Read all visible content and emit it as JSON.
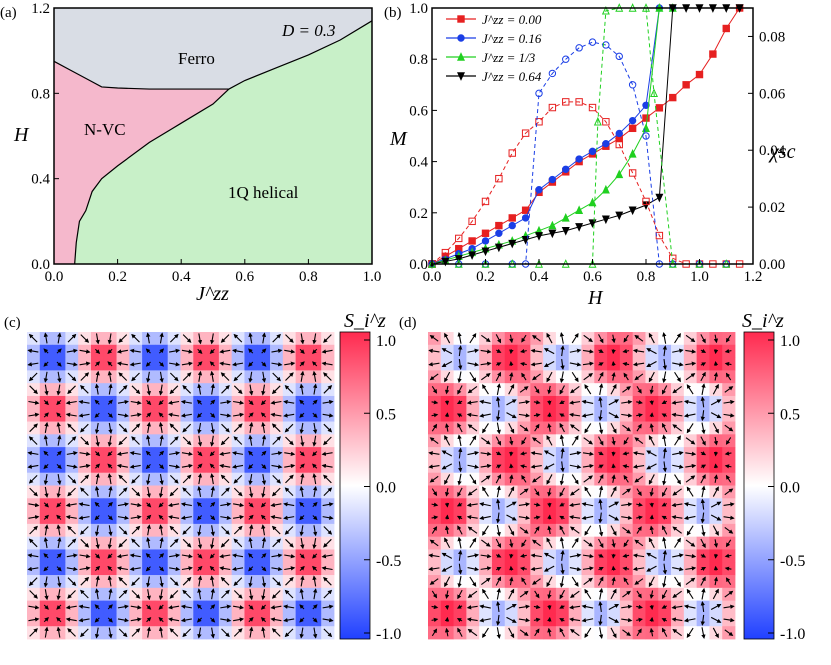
{
  "figure": {
    "panel_labels": [
      "(a)",
      "(b)",
      "(c)",
      "(d)"
    ]
  },
  "panel_a": {
    "annotation": "D = 0.3",
    "xlabel": "J^zz",
    "ylabel": "H",
    "xticks": [
      "0.0",
      "0.2",
      "0.4",
      "0.6",
      "0.8",
      "1.0"
    ],
    "yticks": [
      "0.0",
      "0.4",
      "0.8",
      "1.2"
    ],
    "regions": [
      {
        "name": "Ferro",
        "color": "#d9dde5"
      },
      {
        "name": "N-VC",
        "color": "#f5b8cc"
      },
      {
        "name": "1Q helical",
        "color": "#c8f0c8"
      }
    ]
  },
  "panel_b": {
    "xlabel": "H",
    "ylabel_left": "M",
    "ylabel_right": "χsc",
    "xticks": [
      "0.0",
      "0.2",
      "0.4",
      "0.6",
      "0.8",
      "1.0",
      "1.2"
    ],
    "yticks_left": [
      "0.0",
      "0.2",
      "0.4",
      "0.6",
      "0.8",
      "1.0"
    ],
    "yticks_right": [
      "0.00",
      "0.02",
      "0.04",
      "0.06",
      "0.08"
    ]
  },
  "colorbar": {
    "label": "S_i^z",
    "ticks": [
      "1.0",
      "0.5",
      "0.0",
      "-0.5",
      "-1.0"
    ]
  },
  "chart_data": [
    {
      "type": "phase-diagram",
      "panel": "(a)",
      "xlabel": "J^zz",
      "ylabel": "H",
      "xlim": [
        0,
        1
      ],
      "ylim": [
        0,
        1.2
      ],
      "boundaries": {
        "nvc_ferro": [
          [
            0.0,
            0.95
          ],
          [
            0.05,
            0.91
          ],
          [
            0.1,
            0.87
          ],
          [
            0.15,
            0.83
          ],
          [
            0.2,
            0.825
          ],
          [
            0.3,
            0.82
          ],
          [
            0.45,
            0.82
          ],
          [
            0.55,
            0.82
          ]
        ],
        "nvc_helical": [
          [
            0.065,
            0.0
          ],
          [
            0.07,
            0.1
          ],
          [
            0.08,
            0.2
          ],
          [
            0.1,
            0.25
          ],
          [
            0.12,
            0.34
          ],
          [
            0.15,
            0.4
          ],
          [
            0.2,
            0.46
          ],
          [
            0.3,
            0.57
          ],
          [
            0.4,
            0.66
          ],
          [
            0.5,
            0.75
          ],
          [
            0.55,
            0.82
          ]
        ],
        "ferro_helical": [
          [
            0.55,
            0.82
          ],
          [
            0.6,
            0.86
          ],
          [
            0.7,
            0.92
          ],
          [
            0.8,
            0.98
          ],
          [
            0.9,
            1.05
          ],
          [
            1.0,
            1.14
          ]
        ],
        "outer_left_top": [
          [
            0.0,
            1.2
          ],
          [
            0.0,
            0.95
          ]
        ]
      }
    },
    {
      "type": "line",
      "panel": "(b)",
      "xlabel": "H",
      "ylabel": "M",
      "y2label": "χsc",
      "xlim": [
        0,
        1.2
      ],
      "ylim": [
        0,
        1.0
      ],
      "y2lim": [
        0,
        0.09
      ],
      "series": [
        {
          "name": "J^zz = 0.00",
          "color": "#e62020",
          "marker": "square",
          "axis": "M",
          "x": [
            0.0,
            0.05,
            0.1,
            0.15,
            0.2,
            0.25,
            0.3,
            0.35,
            0.4,
            0.45,
            0.5,
            0.55,
            0.6,
            0.65,
            0.7,
            0.75,
            0.8,
            0.85,
            0.9,
            0.95,
            1.0,
            1.05,
            1.1,
            1.15
          ],
          "y": [
            0.0,
            0.03,
            0.06,
            0.09,
            0.12,
            0.15,
            0.18,
            0.21,
            0.28,
            0.32,
            0.36,
            0.4,
            0.43,
            0.46,
            0.49,
            0.53,
            0.57,
            0.61,
            0.65,
            0.7,
            0.74,
            0.82,
            0.92,
            1.0
          ]
        },
        {
          "name": "J^zz = 0.16",
          "color": "#1a3ee6",
          "marker": "circle",
          "axis": "M",
          "x": [
            0.0,
            0.05,
            0.1,
            0.15,
            0.2,
            0.25,
            0.3,
            0.35,
            0.4,
            0.45,
            0.5,
            0.55,
            0.6,
            0.65,
            0.7,
            0.75,
            0.8,
            0.85,
            0.9
          ],
          "y": [
            0.0,
            0.02,
            0.04,
            0.06,
            0.09,
            0.12,
            0.15,
            0.18,
            0.29,
            0.33,
            0.37,
            0.41,
            0.44,
            0.47,
            0.51,
            0.56,
            0.62,
            1.0,
            1.0
          ]
        },
        {
          "name": "J^zz = 1/3",
          "color": "#20d020",
          "marker": "triangle-up",
          "axis": "M",
          "x": [
            0.0,
            0.05,
            0.1,
            0.15,
            0.2,
            0.25,
            0.3,
            0.35,
            0.4,
            0.45,
            0.5,
            0.55,
            0.6,
            0.65,
            0.7,
            0.75,
            0.8,
            0.85,
            0.9
          ],
          "y": [
            0.0,
            0.015,
            0.03,
            0.045,
            0.06,
            0.075,
            0.09,
            0.11,
            0.13,
            0.15,
            0.18,
            0.21,
            0.24,
            0.29,
            0.35,
            0.43,
            0.53,
            1.0,
            1.0
          ]
        },
        {
          "name": "J^zz = 0.64",
          "color": "#000000",
          "marker": "triangle-down",
          "axis": "M",
          "x": [
            0.0,
            0.05,
            0.1,
            0.15,
            0.2,
            0.25,
            0.3,
            0.35,
            0.4,
            0.45,
            0.5,
            0.55,
            0.6,
            0.65,
            0.7,
            0.75,
            0.8,
            0.85,
            0.9,
            0.95,
            1.0,
            1.05,
            1.1,
            1.15
          ],
          "y": [
            0.0,
            0.01,
            0.02,
            0.035,
            0.05,
            0.065,
            0.08,
            0.095,
            0.11,
            0.12,
            0.13,
            0.145,
            0.16,
            0.175,
            0.19,
            0.21,
            0.23,
            0.26,
            1.0,
            1.0,
            1.0,
            1.0,
            1.0,
            1.0
          ]
        },
        {
          "name": "χsc (J^zz = 0.00)",
          "color": "#e62020",
          "marker": "open-square",
          "axis": "chi",
          "dashed": true,
          "x": [
            0.0,
            0.05,
            0.1,
            0.15,
            0.2,
            0.25,
            0.3,
            0.35,
            0.4,
            0.45,
            0.5,
            0.55,
            0.6,
            0.65,
            0.7,
            0.75,
            0.8,
            0.85,
            0.9,
            0.95,
            1.0,
            1.05,
            1.1,
            1.15
          ],
          "y": [
            0.0,
            0.004,
            0.009,
            0.015,
            0.022,
            0.03,
            0.039,
            0.046,
            0.05,
            0.055,
            0.057,
            0.057,
            0.055,
            0.05,
            0.042,
            0.032,
            0.022,
            0.01,
            0.002,
            0.0,
            0.0,
            0.0,
            0.0,
            0.0
          ]
        },
        {
          "name": "χsc (J^zz = 0.16)",
          "color": "#1a3ee6",
          "marker": "open-circle",
          "axis": "chi",
          "dashed": true,
          "x": [
            0.0,
            0.1,
            0.2,
            0.3,
            0.35,
            0.4,
            0.45,
            0.5,
            0.55,
            0.6,
            0.65,
            0.7,
            0.75,
            0.8,
            0.85,
            0.9,
            1.0,
            1.1
          ],
          "y": [
            0.0,
            0.0,
            0.0,
            0.0,
            0.0,
            0.06,
            0.067,
            0.072,
            0.076,
            0.078,
            0.077,
            0.073,
            0.063,
            0.045,
            0.0,
            0.0,
            0.0,
            0.0
          ]
        },
        {
          "name": "χsc (J^zz = 1/3)",
          "color": "#20d020",
          "marker": "open-triangle-up",
          "axis": "chi",
          "dashed": true,
          "x": [
            0.0,
            0.1,
            0.2,
            0.3,
            0.4,
            0.5,
            0.6,
            0.62,
            0.65,
            0.7,
            0.75,
            0.8,
            0.83,
            0.9,
            1.0,
            1.1
          ],
          "y": [
            0.0,
            0.0,
            0.0,
            0.0,
            0.0,
            0.0,
            0.0,
            0.05,
            0.089,
            0.09,
            0.09,
            0.09,
            0.06,
            0.0,
            0.0,
            0.0
          ]
        }
      ]
    },
    {
      "type": "heatmap",
      "panel": "(c)",
      "description": "vortex crystal, lattice 24x24, S_i^z color with in-plane spin arrows",
      "grid": 24,
      "zlim": [
        -1.0,
        1.0
      ],
      "pattern": "checkerboard-skyrmion",
      "period": 8
    },
    {
      "type": "heatmap",
      "panel": "(d)",
      "description": "vortex crystal with ferro-shifted background, lattice 24x24",
      "grid": 24,
      "zlim": [
        -1.0,
        1.0
      ],
      "pattern": "stripe-skyrmion",
      "period": 8
    }
  ]
}
